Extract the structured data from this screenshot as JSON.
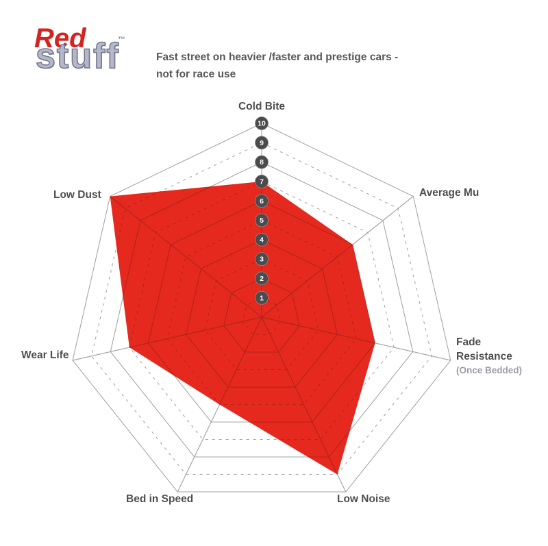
{
  "logo": {
    "red": "Red",
    "stuff": "stuff",
    "tm": "™"
  },
  "header": {
    "subtitle_line1": "Fast street on heavier /faster and prestige cars -",
    "subtitle_line2": "not for race use"
  },
  "chart_data": {
    "type": "radar",
    "title": "Fast street on heavier /faster and prestige cars - not for race use",
    "axes": [
      {
        "label": "Cold Bite",
        "value": 7
      },
      {
        "label": "Average Mu",
        "value": 6
      },
      {
        "label": "Fade Resistance",
        "sublabel": "(Once Bedded)",
        "value": 6
      },
      {
        "label": "Low Noise",
        "value": 9
      },
      {
        "label": "Bed in Speed",
        "value": 5
      },
      {
        "label": "Wear Life",
        "value": 7
      },
      {
        "label": "Low Dust",
        "value": 10
      }
    ],
    "scale": {
      "min": 1,
      "max": 10,
      "labels": [
        "1",
        "2",
        "3",
        "4",
        "5",
        "6",
        "7",
        "8",
        "9",
        "10"
      ]
    },
    "series_color": "#e5291e",
    "grid_color": "#a6a6a6",
    "inner_grid_color": "#b2241b",
    "legend": "none",
    "grid": "on"
  }
}
